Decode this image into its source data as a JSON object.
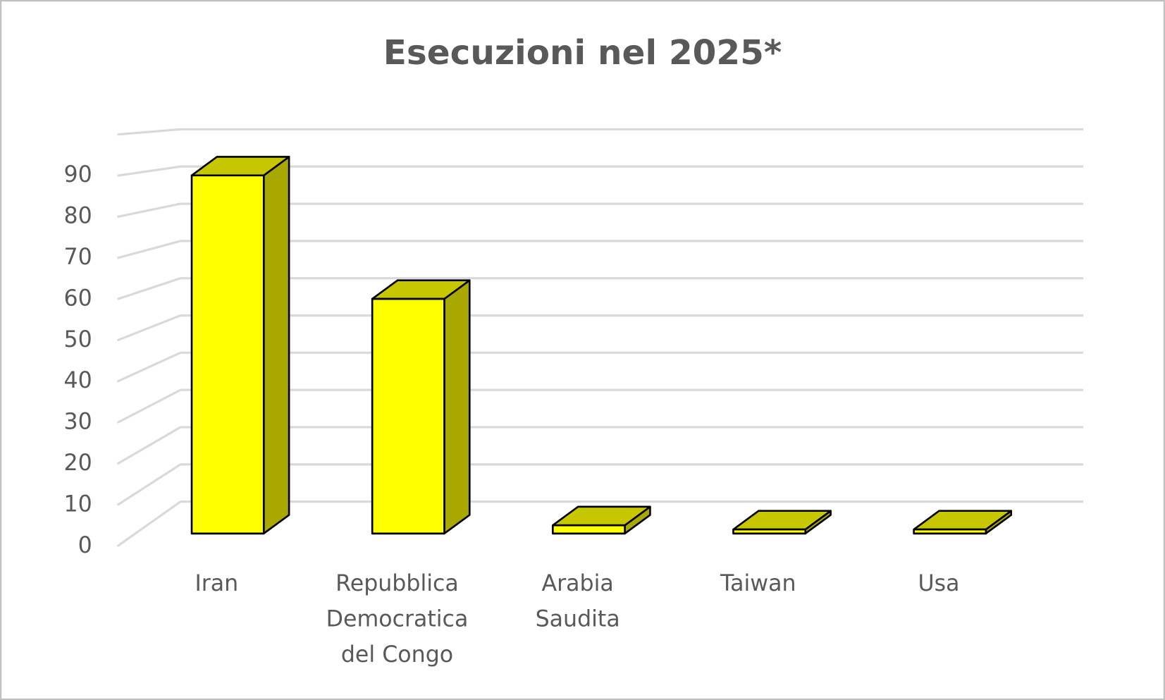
{
  "chart_data": {
    "type": "bar3d",
    "title": "Esecuzioni nel 2025*",
    "categories": [
      "Iran",
      "Repubblica Democratica del Congo",
      "Arabia Saudita",
      "Taiwan",
      "Usa"
    ],
    "values": [
      87,
      57,
      2,
      1,
      1
    ],
    "color": "#ffff00",
    "ylim": [
      0,
      100
    ],
    "yticks": [
      0,
      10,
      20,
      30,
      40,
      50,
      60,
      70,
      80,
      90
    ],
    "grid": true
  }
}
